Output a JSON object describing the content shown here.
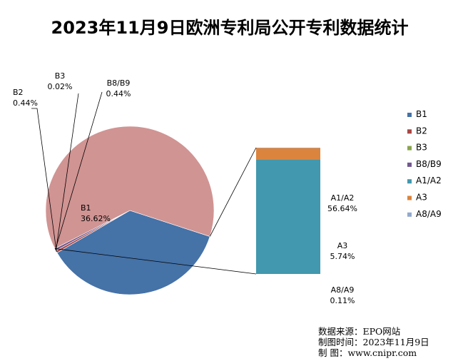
{
  "chart_data": {
    "type": "pie",
    "title": "2023年11月9日欧洲专利局公开专利数据统计",
    "categories": [
      "B1",
      "B2",
      "B3",
      "B8/B9",
      "A1/A2",
      "A3",
      "A8/A9"
    ],
    "values": [
      36.62,
      0.44,
      0.02,
      0.44,
      56.64,
      5.74,
      0.11
    ],
    "value_labels": [
      "36.62%",
      "0.44%",
      "0.02%",
      "0.44%",
      "56.64%",
      "5.74%",
      "0.11%"
    ],
    "colors": [
      "#4572A7",
      "#AA4643",
      "#89A54E",
      "#71588F",
      "#4198AF",
      "#DB843D",
      "#93A9CF"
    ],
    "pie_group": [
      "B1",
      "B2",
      "B3",
      "B8/B9"
    ],
    "bar_group": [
      "A1/A2",
      "A3",
      "A8/A9"
    ],
    "other_slice_color": "#D09493",
    "legend_position": "right"
  },
  "source": {
    "line1": "数据来源：EPO网站",
    "line2": "制图时间：2023年11月9日",
    "line3": "制      图：www.cnipr.com"
  }
}
